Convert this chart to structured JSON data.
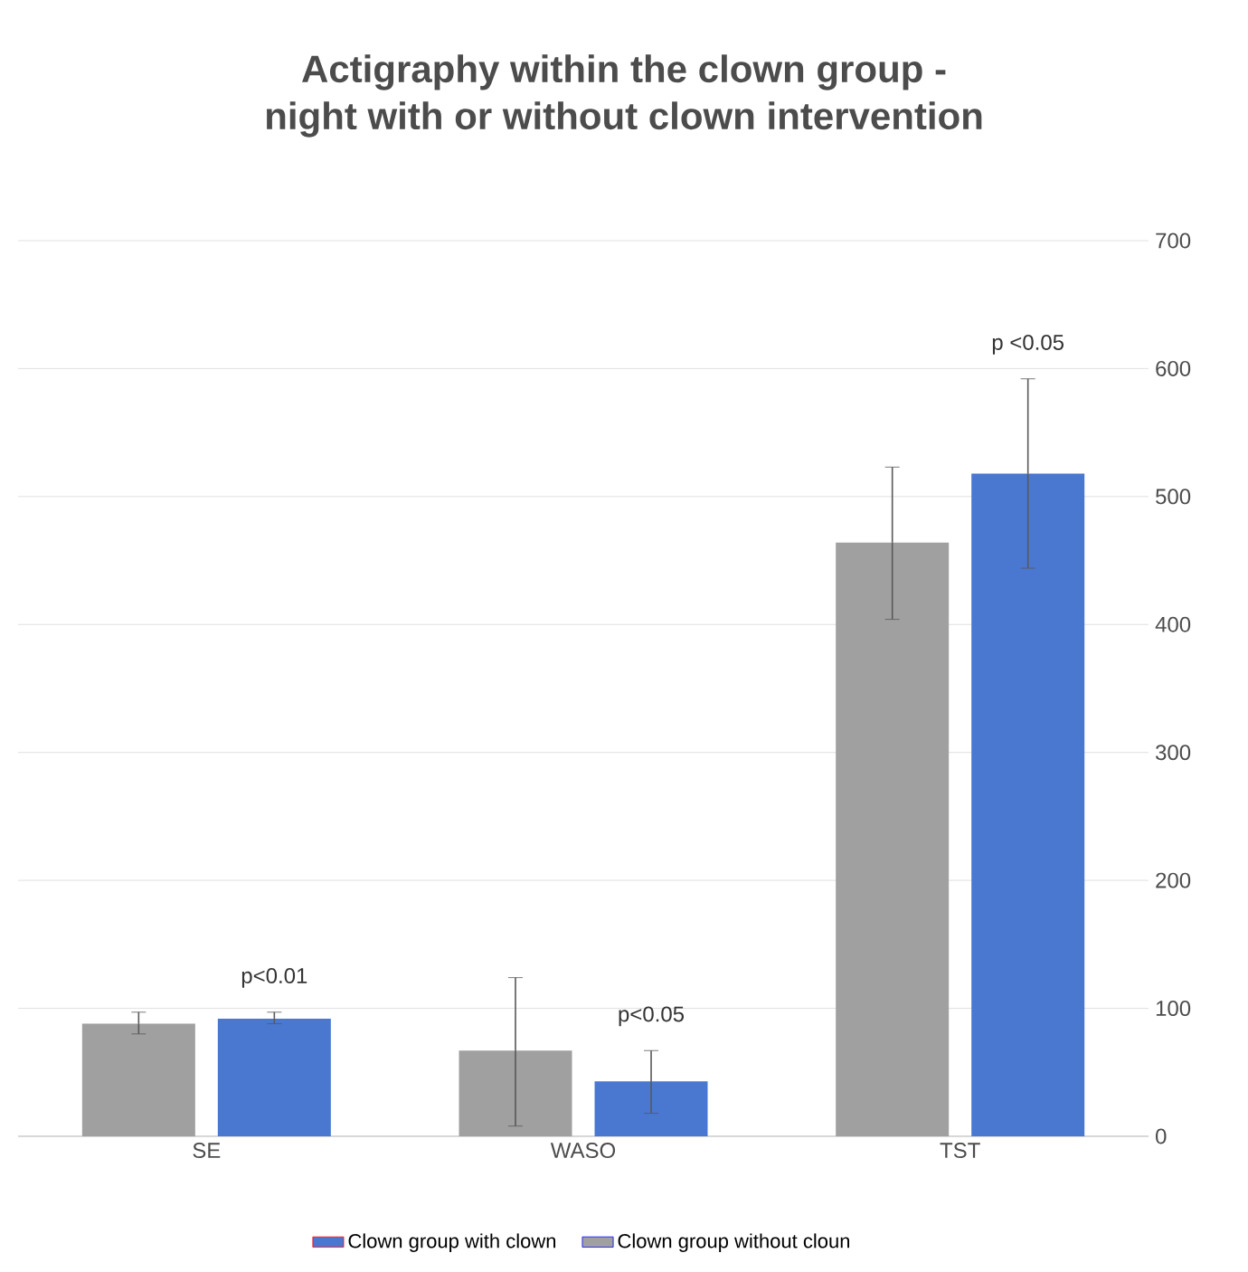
{
  "chart_data": {
    "type": "bar",
    "title": "Actigraphy within the clown group -\nnight with or without clown intervention",
    "categories": [
      "SE",
      "WASO",
      "TST"
    ],
    "series": [
      {
        "name": "Clown group without cloun",
        "color": "#a0a0a0",
        "values": [
          88,
          67,
          464
        ],
        "errors": [
          [
            80,
            97
          ],
          [
            8,
            124
          ],
          [
            404,
            523
          ]
        ]
      },
      {
        "name": "Clown group with clown",
        "color": "#4a78d0",
        "values": [
          92,
          43,
          518
        ],
        "errors": [
          [
            88,
            97
          ],
          [
            18,
            67
          ],
          [
            444,
            592
          ]
        ]
      }
    ],
    "ylim": [
      0,
      700
    ],
    "yticks": [
      0,
      100,
      200,
      300,
      400,
      500,
      600,
      700
    ],
    "grid": "y",
    "legend": "bottom",
    "annotations": [
      "p<0.01",
      "p<0.05",
      "p <0.05"
    ]
  }
}
